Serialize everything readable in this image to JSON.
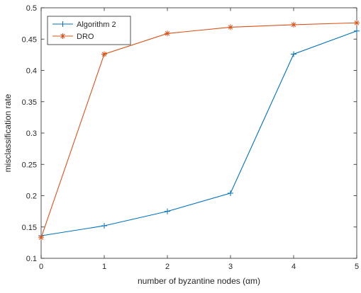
{
  "chart_data": {
    "type": "line",
    "title": "",
    "xlabel": "number of byzantine nodes (αm)",
    "ylabel": "misclassification rate",
    "xlim": [
      0,
      5
    ],
    "ylim": [
      0.1,
      0.5
    ],
    "xticks": [
      0,
      1,
      2,
      3,
      4,
      5
    ],
    "yticks": [
      0.1,
      0.15,
      0.2,
      0.25,
      0.3,
      0.35,
      0.4,
      0.45,
      0.5
    ],
    "xtick_labels": [
      "0",
      "1",
      "2",
      "3",
      "4",
      "5"
    ],
    "ytick_labels": [
      "0.1",
      "0.15",
      "0.2",
      "0.25",
      "0.3",
      "0.35",
      "0.4",
      "0.45",
      "0.5"
    ],
    "grid": false,
    "legend_position": "top-left",
    "series": [
      {
        "name": "Algorithm 2",
        "color": "#0072bd",
        "marker": "plus",
        "x": [
          0,
          1,
          2,
          3,
          4,
          5
        ],
        "y": [
          0.136,
          0.152,
          0.175,
          0.204,
          0.426,
          0.463
        ]
      },
      {
        "name": "DRO",
        "color": "#d95319",
        "marker": "asterisk",
        "x": [
          0,
          1,
          2,
          3,
          4,
          5
        ],
        "y": [
          0.133,
          0.426,
          0.459,
          0.469,
          0.473,
          0.476
        ]
      }
    ]
  }
}
